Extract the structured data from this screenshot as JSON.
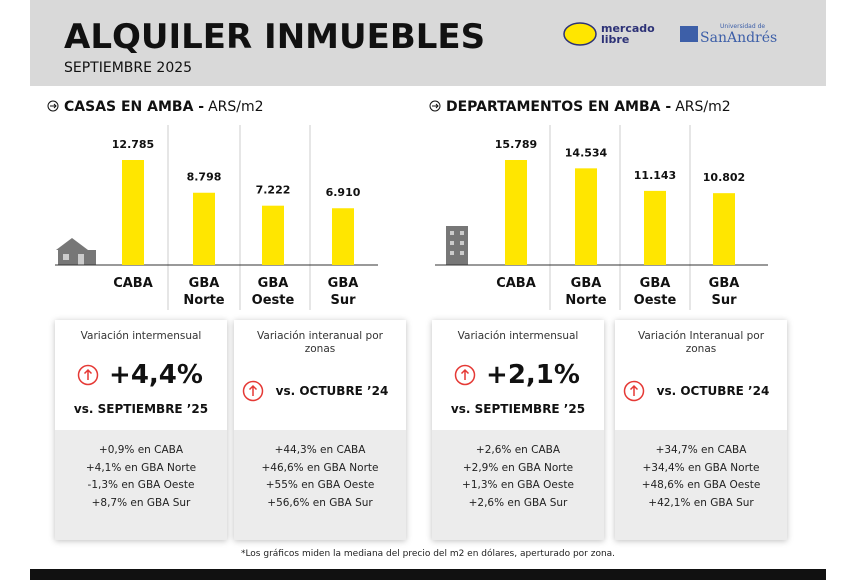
{
  "header": {
    "title": "ALQUILER INMUEBLES",
    "subtitle": "SEPTIEMBRE 2025"
  },
  "logos": [
    "mercado",
    "libre",
    "Universidad de",
    "SanAndrés"
  ],
  "chart_data": [
    {
      "type": "bar",
      "title": "CASAS EN AMBA -",
      "unit": "ARS/m2",
      "categories": [
        "CABA",
        "GBA Norte",
        "GBA Oeste",
        "GBA Sur"
      ],
      "values": [
        12785,
        8798,
        7222,
        6910
      ],
      "value_labels": [
        "12.785",
        "8.798",
        "7.222",
        "6.910"
      ],
      "color": "#ffe600"
    },
    {
      "type": "bar",
      "title": "DEPARTAMENTOS EN AMBA -",
      "unit": "ARS/m2",
      "categories": [
        "CABA",
        "GBA Norte",
        "GBA Oeste",
        "GBA Sur"
      ],
      "values": [
        15789,
        14534,
        11143,
        10802
      ],
      "value_labels": [
        "15.789",
        "14.534",
        "11.143",
        "10.802"
      ],
      "color": "#ffe600"
    }
  ],
  "cards": [
    {
      "title": "Variación intermensual",
      "value": "+4,4%",
      "comparison": "vs. SEPTIEMBRE ’25",
      "details": [
        "+0,9% en CABA",
        "+4,1% en GBA Norte",
        "-1,3% en GBA Oeste",
        "+8,7% en GBA Sur"
      ]
    },
    {
      "title": "Variación interanual por zonas",
      "comparison": "vs. OCTUBRE ’24",
      "details": [
        "+44,3% en CABA",
        "+46,6% en GBA Norte",
        "+55% en GBA Oeste",
        "+56,6% en GBA Sur"
      ]
    },
    {
      "title": "Variación intermensual",
      "value": "+2,1%",
      "comparison": "vs. SEPTIEMBRE ’25",
      "details": [
        "+2,6% en CABA",
        "+2,9% en GBA Norte",
        "+1,3% en GBA Oeste",
        "+2,6% en GBA Sur"
      ]
    },
    {
      "title": "Variación Interanual por zonas",
      "comparison": "vs. OCTUBRE ’24",
      "details": [
        "+34,7% en CABA",
        "+34,4% en GBA Norte",
        "+48,6% en GBA Oeste",
        "+42,1% en GBA Sur"
      ]
    }
  ],
  "footnote": "*Los gráficos miden la mediana del precio del m2 en dólares, aperturado por zona."
}
